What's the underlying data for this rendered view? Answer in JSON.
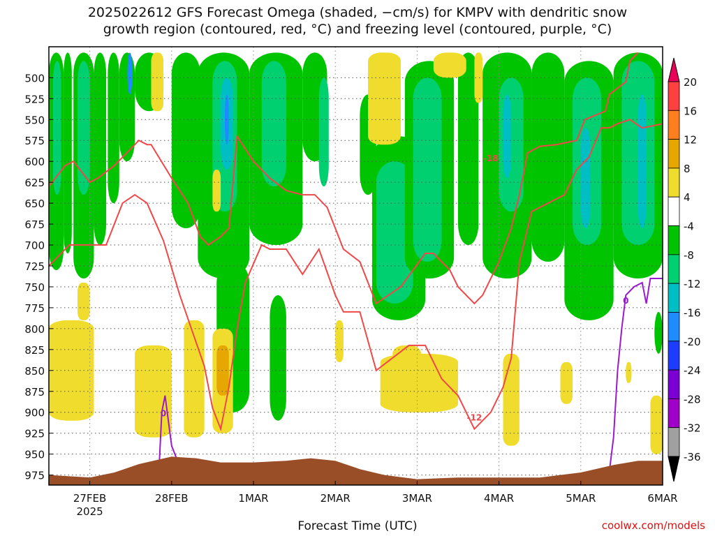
{
  "chart_data": {
    "type": "heatmap",
    "title_line1": "2025022612 GFS Forecast Omega (shaded, −cm/s) for KMPV with dendritic snow",
    "title_line2": "growth region (contoured, red, °C) and freezing level (contoured, purple, °C)",
    "xlabel": "Forecast Time (UTC)",
    "credit": "coolwx.com/models",
    "x_ticks": [
      {
        "label": "27FEB",
        "sub": "2025",
        "t": 0.5
      },
      {
        "label": "28FEB",
        "sub": "",
        "t": 1.5
      },
      {
        "label": "1MAR",
        "sub": "",
        "t": 2.5
      },
      {
        "label": "2MAR",
        "sub": "",
        "t": 3.5
      },
      {
        "label": "3MAR",
        "sub": "",
        "t": 4.5
      },
      {
        "label": "4MAR",
        "sub": "",
        "t": 5.5
      },
      {
        "label": "5MAR",
        "sub": "",
        "t": 6.5
      },
      {
        "label": "6MAR",
        "sub": "",
        "t": 7.5
      }
    ],
    "x_range": [
      0,
      7.5
    ],
    "y_ticks": [
      500,
      525,
      550,
      575,
      600,
      625,
      650,
      675,
      700,
      725,
      750,
      775,
      800,
      825,
      850,
      875,
      900,
      925,
      950,
      975
    ],
    "y_range": [
      463,
      987
    ],
    "grid": "dotted",
    "colorbar": {
      "labels": [
        "20",
        "16",
        "12",
        "8",
        "4",
        "-4",
        "-8",
        "-12",
        "-16",
        "-20",
        "-24",
        "-28",
        "-32",
        "-36"
      ],
      "colors": [
        "#e8005a",
        "#ff4040",
        "#ff7f1f",
        "#e6a800",
        "#f0dc2c",
        "#ffffff",
        "#00c400",
        "#00d070",
        "#00bfc4",
        "#1e8cff",
        "#1e3cff",
        "#7a00d4",
        "#a000c8",
        "#a0a0a0",
        "#000000"
      ]
    },
    "omega_bands": [
      {
        "t0": 0.0,
        "t1": 0.18,
        "p0": 470,
        "p1": 730,
        "value": -8
      },
      {
        "t0": 0.05,
        "t1": 0.15,
        "p0": 480,
        "p1": 640,
        "value": -12
      },
      {
        "t0": 0.18,
        "t1": 0.28,
        "p0": 470,
        "p1": 710,
        "value": -8
      },
      {
        "t0": 0.3,
        "t1": 0.55,
        "p0": 470,
        "p1": 740,
        "value": -8
      },
      {
        "t0": 0.35,
        "t1": 0.5,
        "p0": 480,
        "p1": 640,
        "value": -12
      },
      {
        "t0": 0.55,
        "t1": 0.7,
        "p0": 470,
        "p1": 700,
        "value": -8
      },
      {
        "t0": 0.72,
        "t1": 0.86,
        "p0": 470,
        "p1": 650,
        "value": -8
      },
      {
        "t0": 0.86,
        "t1": 1.05,
        "p0": 470,
        "p1": 600,
        "value": -8
      },
      {
        "t0": 0.96,
        "t1": 1.02,
        "p0": 470,
        "p1": 520,
        "value": -20
      },
      {
        "t0": 1.05,
        "t1": 1.4,
        "p0": 470,
        "p1": 540,
        "value": -8
      },
      {
        "t0": 1.5,
        "t1": 1.85,
        "p0": 470,
        "p1": 680,
        "value": -8
      },
      {
        "t0": 1.82,
        "t1": 2.45,
        "p0": 470,
        "p1": 740,
        "value": -8
      },
      {
        "t0": 2.0,
        "t1": 2.3,
        "p0": 480,
        "p1": 660,
        "value": -12
      },
      {
        "t0": 2.1,
        "t1": 2.25,
        "p0": 500,
        "p1": 610,
        "value": -16
      },
      {
        "t0": 2.15,
        "t1": 2.2,
        "p0": 520,
        "p1": 580,
        "value": -20
      },
      {
        "t0": 2.45,
        "t1": 3.1,
        "p0": 470,
        "p1": 700,
        "value": -8
      },
      {
        "t0": 2.6,
        "t1": 2.9,
        "p0": 480,
        "p1": 630,
        "value": -12
      },
      {
        "t0": 2.7,
        "t1": 2.9,
        "p0": 760,
        "p1": 910,
        "value": -8
      },
      {
        "t0": 3.1,
        "t1": 3.4,
        "p0": 470,
        "p1": 600,
        "value": -8
      },
      {
        "t0": 3.3,
        "t1": 3.42,
        "p0": 500,
        "p1": 630,
        "value": -12
      },
      {
        "t0": 2.05,
        "t1": 2.45,
        "p0": 720,
        "p1": 900,
        "value": -8
      },
      {
        "t0": 3.8,
        "t1": 4.0,
        "p0": 520,
        "p1": 640,
        "value": -8
      },
      {
        "t0": 3.95,
        "t1": 4.6,
        "p0": 570,
        "p1": 790,
        "value": -8
      },
      {
        "t0": 4.0,
        "t1": 4.45,
        "p0": 600,
        "p1": 770,
        "value": -12
      },
      {
        "t0": 4.35,
        "t1": 4.95,
        "p0": 480,
        "p1": 740,
        "value": -8
      },
      {
        "t0": 4.45,
        "t1": 4.8,
        "p0": 500,
        "p1": 720,
        "value": -12
      },
      {
        "t0": 5.0,
        "t1": 5.25,
        "p0": 470,
        "p1": 700,
        "value": -8
      },
      {
        "t0": 5.3,
        "t1": 5.9,
        "p0": 470,
        "p1": 740,
        "value": -8
      },
      {
        "t0": 5.5,
        "t1": 5.8,
        "p0": 500,
        "p1": 660,
        "value": -12
      },
      {
        "t0": 5.55,
        "t1": 5.65,
        "p0": 520,
        "p1": 620,
        "value": -16
      },
      {
        "t0": 5.9,
        "t1": 6.3,
        "p0": 470,
        "p1": 720,
        "value": -8
      },
      {
        "t0": 6.3,
        "t1": 6.9,
        "p0": 480,
        "p1": 790,
        "value": -8
      },
      {
        "t0": 6.4,
        "t1": 6.75,
        "p0": 500,
        "p1": 700,
        "value": -12
      },
      {
        "t0": 6.5,
        "t1": 6.62,
        "p0": 560,
        "p1": 680,
        "value": -16
      },
      {
        "t0": 6.9,
        "t1": 7.5,
        "p0": 470,
        "p1": 740,
        "value": -8
      },
      {
        "t0": 7.0,
        "t1": 7.4,
        "p0": 480,
        "p1": 700,
        "value": -12
      },
      {
        "t0": 7.2,
        "t1": 7.3,
        "p0": 520,
        "p1": 680,
        "value": -16
      },
      {
        "t0": 7.4,
        "t1": 7.5,
        "p0": 780,
        "p1": 830,
        "value": -8
      }
    ],
    "positive_bands": [
      {
        "t0": 0.0,
        "t1": 0.55,
        "p0": 790,
        "p1": 910,
        "value": 4
      },
      {
        "t0": 0.35,
        "t1": 0.5,
        "p0": 745,
        "p1": 790,
        "value": 4
      },
      {
        "t0": 1.05,
        "t1": 1.5,
        "p0": 820,
        "p1": 930,
        "value": 4
      },
      {
        "t0": 1.25,
        "t1": 1.4,
        "p0": 470,
        "p1": 540,
        "value": 4
      },
      {
        "t0": 1.65,
        "t1": 1.9,
        "p0": 790,
        "p1": 930,
        "value": 4
      },
      {
        "t0": 2.0,
        "t1": 2.25,
        "p0": 800,
        "p1": 925,
        "value": 4
      },
      {
        "t0": 2.05,
        "t1": 2.2,
        "p0": 820,
        "p1": 880,
        "value": 8
      },
      {
        "t0": 2.0,
        "t1": 2.1,
        "p0": 610,
        "p1": 660,
        "value": 4
      },
      {
        "t0": 3.5,
        "t1": 3.6,
        "p0": 790,
        "p1": 840,
        "value": 4
      },
      {
        "t0": 3.9,
        "t1": 4.3,
        "p0": 470,
        "p1": 580,
        "value": 4
      },
      {
        "t0": 4.7,
        "t1": 5.1,
        "p0": 470,
        "p1": 500,
        "value": 4
      },
      {
        "t0": 4.05,
        "t1": 5.0,
        "p0": 830,
        "p1": 900,
        "value": 4
      },
      {
        "t0": 4.2,
        "t1": 4.55,
        "p0": 820,
        "p1": 860,
        "value": 4
      },
      {
        "t0": 5.2,
        "t1": 5.3,
        "p0": 470,
        "p1": 530,
        "value": 4
      },
      {
        "t0": 5.55,
        "t1": 5.75,
        "p0": 830,
        "p1": 940,
        "value": 4
      },
      {
        "t0": 6.25,
        "t1": 6.4,
        "p0": 840,
        "p1": 890,
        "value": 4
      },
      {
        "t0": 7.05,
        "t1": 7.12,
        "p0": 840,
        "p1": 865,
        "value": 4
      },
      {
        "t0": 7.35,
        "t1": 7.5,
        "p0": 880,
        "p1": 950,
        "value": 4
      }
    ],
    "dendritic_contours": [
      {
        "label": "-18",
        "points": [
          [
            0.0,
            630
          ],
          [
            0.2,
            605
          ],
          [
            0.3,
            600
          ],
          [
            0.5,
            625
          ],
          [
            0.6,
            620
          ],
          [
            0.8,
            605
          ],
          [
            1.1,
            575
          ],
          [
            1.2,
            580
          ],
          [
            1.25,
            580
          ],
          [
            1.5,
            620
          ],
          [
            1.7,
            650
          ],
          [
            1.85,
            690
          ],
          [
            1.95,
            700
          ],
          [
            2.1,
            690
          ],
          [
            2.2,
            680
          ],
          [
            2.3,
            570
          ],
          [
            2.5,
            600
          ],
          [
            2.7,
            620
          ],
          [
            2.9,
            635
          ],
          [
            3.1,
            640
          ],
          [
            3.25,
            640
          ],
          [
            3.4,
            655
          ],
          [
            3.6,
            705
          ],
          [
            3.8,
            720
          ],
          [
            3.9,
            745
          ],
          [
            4.0,
            770
          ],
          [
            4.3,
            750
          ],
          [
            4.6,
            710
          ],
          [
            4.7,
            710
          ],
          [
            4.9,
            730
          ],
          [
            5.0,
            750
          ],
          [
            5.2,
            770
          ],
          [
            5.3,
            760
          ],
          [
            5.5,
            720
          ],
          [
            5.65,
            680
          ],
          [
            5.75,
            640
          ],
          [
            5.85,
            590
          ],
          [
            6.0,
            582
          ],
          [
            6.2,
            580
          ],
          [
            6.45,
            575
          ],
          [
            6.55,
            550
          ],
          [
            6.8,
            540
          ],
          [
            6.85,
            520
          ],
          [
            7.05,
            505
          ],
          [
            7.1,
            480
          ],
          [
            7.2,
            470
          ]
        ],
        "label_t": 5.4,
        "label_p": 600
      },
      {
        "label": "-12",
        "points": [
          [
            0.0,
            725
          ],
          [
            0.25,
            700
          ],
          [
            0.45,
            700
          ],
          [
            0.7,
            700
          ],
          [
            0.9,
            650
          ],
          [
            1.05,
            640
          ],
          [
            1.2,
            650
          ],
          [
            1.4,
            695
          ],
          [
            1.6,
            760
          ],
          [
            1.9,
            845
          ],
          [
            2.0,
            895
          ],
          [
            2.1,
            920
          ],
          [
            2.2,
            870
          ],
          [
            2.3,
            800
          ],
          [
            2.4,
            745
          ],
          [
            2.6,
            700
          ],
          [
            2.7,
            705
          ],
          [
            2.9,
            705
          ],
          [
            3.1,
            735
          ],
          [
            3.3,
            705
          ],
          [
            3.5,
            760
          ],
          [
            3.6,
            780
          ],
          [
            3.8,
            780
          ],
          [
            4.0,
            850
          ],
          [
            4.4,
            820
          ],
          [
            4.6,
            820
          ],
          [
            4.8,
            860
          ],
          [
            5.0,
            880
          ],
          [
            5.2,
            920
          ],
          [
            5.4,
            900
          ],
          [
            5.55,
            870
          ],
          [
            5.65,
            835
          ],
          [
            5.75,
            720
          ],
          [
            5.9,
            660
          ],
          [
            6.1,
            650
          ],
          [
            6.3,
            640
          ],
          [
            6.45,
            610
          ],
          [
            6.6,
            595
          ],
          [
            6.75,
            560
          ],
          [
            6.85,
            560
          ],
          [
            6.95,
            555
          ],
          [
            7.1,
            550
          ],
          [
            7.25,
            560
          ],
          [
            7.5,
            555
          ]
        ],
        "label_t": 5.2,
        "label_p": 910
      }
    ],
    "freezing_contours": [
      {
        "label": "0",
        "points": [
          [
            1.35,
            960
          ],
          [
            1.38,
            900
          ],
          [
            1.42,
            880
          ],
          [
            1.5,
            940
          ],
          [
            1.6,
            965
          ]
        ],
        "label_t": 1.4,
        "label_p": 905
      },
      {
        "label": "0",
        "points": [
          [
            6.85,
            970
          ],
          [
            6.9,
            930
          ],
          [
            6.95,
            850
          ],
          [
            7.0,
            800
          ],
          [
            7.05,
            760
          ],
          [
            7.15,
            750
          ],
          [
            7.25,
            745
          ],
          [
            7.3,
            770
          ],
          [
            7.35,
            740
          ],
          [
            7.5,
            740
          ]
        ],
        "label_t": 7.05,
        "label_p": 770
      }
    ],
    "terrain": {
      "color": "#9a4e28",
      "points": [
        [
          0.0,
          975
        ],
        [
          0.5,
          978
        ],
        [
          0.8,
          972
        ],
        [
          1.1,
          962
        ],
        [
          1.5,
          953
        ],
        [
          1.8,
          955
        ],
        [
          2.1,
          960
        ],
        [
          2.5,
          960
        ],
        [
          2.9,
          958
        ],
        [
          3.2,
          955
        ],
        [
          3.5,
          958
        ],
        [
          3.8,
          968
        ],
        [
          4.1,
          975
        ],
        [
          4.5,
          980
        ],
        [
          5.0,
          978
        ],
        [
          5.5,
          978
        ],
        [
          6.0,
          978
        ],
        [
          6.5,
          972
        ],
        [
          6.9,
          963
        ],
        [
          7.2,
          958
        ],
        [
          7.5,
          958
        ]
      ]
    }
  }
}
